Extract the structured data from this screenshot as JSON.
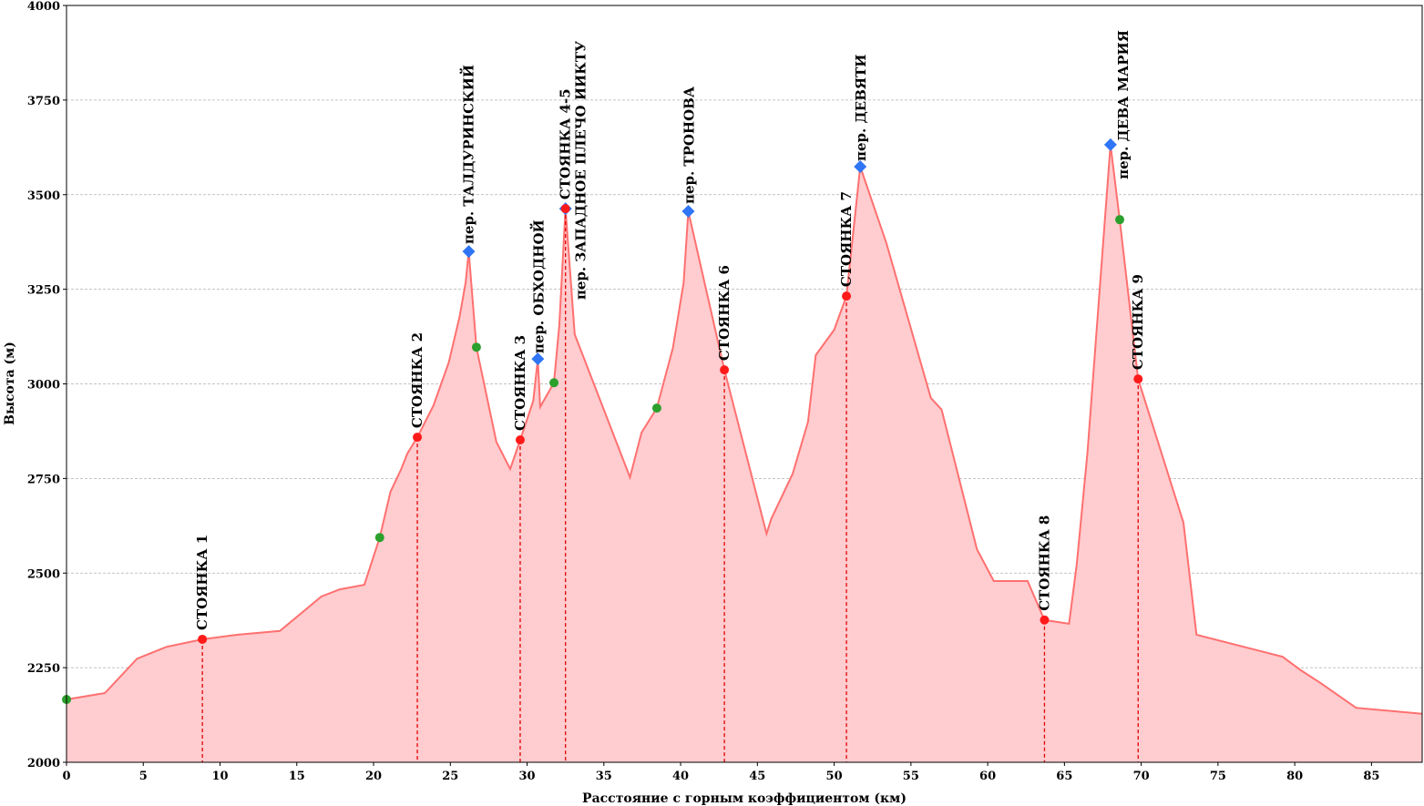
{
  "chart_data": {
    "type": "area",
    "title": "",
    "xlabel": "Расстояние с горным коэффициентом (км)",
    "ylabel": "Высота (м)",
    "xlim": [
      0,
      88.3
    ],
    "ylim": [
      2000,
      4000
    ],
    "xticks": [
      0,
      5,
      10,
      15,
      20,
      25,
      30,
      35,
      40,
      45,
      50,
      55,
      60,
      65,
      70,
      75,
      80,
      85
    ],
    "yticks": [
      2000,
      2250,
      2500,
      2750,
      3000,
      3250,
      3500,
      3750,
      4000
    ],
    "grid": "horizontal dashed",
    "colors": {
      "line": "#ff7070",
      "fill": "#ffcccf",
      "camp": "#ff1a1a",
      "pass": "#2f75f5",
      "waypoint": "#2ca02c",
      "dash": "#e00000"
    },
    "profile": {
      "x": [
        0,
        2.5,
        4.6,
        6.5,
        8.85,
        11.1,
        13.9,
        16.6,
        17.8,
        19.4,
        20.4,
        21.1,
        21.8,
        22.2,
        22.85,
        23.9,
        24.9,
        25.6,
        26.0,
        26.2,
        26.7,
        28.0,
        28.9,
        29.55,
        30.4,
        30.7,
        30.85,
        31.75,
        32.1,
        32.5,
        33.1,
        36.7,
        37.45,
        38.45,
        39.5,
        40.2,
        40.5,
        42.85,
        45.6,
        45.9,
        47.3,
        48.3,
        48.8,
        50.0,
        50.8,
        51.7,
        53.4,
        56.3,
        57.0,
        59.3,
        60.4,
        62.6,
        63.7,
        65.3,
        65.8,
        66.5,
        68.0,
        68.6,
        69.8,
        72.75,
        73.6,
        79.2,
        80.4,
        81.7,
        84.0,
        88.3
      ],
      "y": [
        2166,
        2183,
        2274,
        2305,
        2325,
        2337,
        2347,
        2438,
        2457,
        2469,
        2594,
        2715,
        2775,
        2816,
        2859,
        2943,
        3057,
        3177,
        3268,
        3350,
        3097,
        2847,
        2775,
        2852,
        2955,
        3066,
        2939,
        3003,
        3155,
        3463,
        3131,
        2753,
        2871,
        2936,
        3095,
        3268,
        3456,
        3037,
        2604,
        2643,
        2763,
        2900,
        3076,
        3143,
        3232,
        3574,
        3372,
        2963,
        2932,
        2563,
        2479,
        2479,
        2376,
        2366,
        2522,
        2818,
        3632,
        3434,
        3013,
        2633,
        2337,
        2279,
        2243,
        2209,
        2144,
        2128
      ]
    },
    "waypoints": [
      {
        "x": 0,
        "y": 2166
      },
      {
        "x": 20.4,
        "y": 2594
      },
      {
        "x": 26.7,
        "y": 3097
      },
      {
        "x": 31.75,
        "y": 3003
      },
      {
        "x": 38.45,
        "y": 2936
      },
      {
        "x": 68.6,
        "y": 3434
      }
    ],
    "passes": [
      {
        "x": 26.2,
        "y": 3350,
        "label": "пер. ТАЛДУРИНСКИЙ"
      },
      {
        "x": 30.7,
        "y": 3066,
        "label": "пер. ОБХОДНОЙ"
      },
      {
        "x": 32.5,
        "y": 3463,
        "label": "пер. ЗАПАДНОЕ ПЛЕЧО ИИКТУ"
      },
      {
        "x": 40.5,
        "y": 3456,
        "label": "пер. ТРОНОВА"
      },
      {
        "x": 51.7,
        "y": 3574,
        "label": "пер. ДЕВЯТИ"
      },
      {
        "x": 68.0,
        "y": 3632,
        "label": "пер. ДЕВА МАРИЯ"
      }
    ],
    "camps": [
      {
        "x": 8.85,
        "y": 2325,
        "label": "СТОЯНКА 1"
      },
      {
        "x": 22.85,
        "y": 2859,
        "label": "СТОЯНКА 2"
      },
      {
        "x": 29.55,
        "y": 2852,
        "label": "СТОЯНКА 3"
      },
      {
        "x": 32.5,
        "y": 3463,
        "label": "СТОЯНКА 4-5"
      },
      {
        "x": 42.85,
        "y": 3037,
        "label": "СТОЯНКА 6"
      },
      {
        "x": 50.8,
        "y": 3232,
        "label": "СТОЯНКА 7"
      },
      {
        "x": 63.7,
        "y": 2376,
        "label": "СТОЯНКА 8"
      },
      {
        "x": 69.8,
        "y": 3013,
        "label": "СТОЯНКА 9"
      }
    ]
  }
}
